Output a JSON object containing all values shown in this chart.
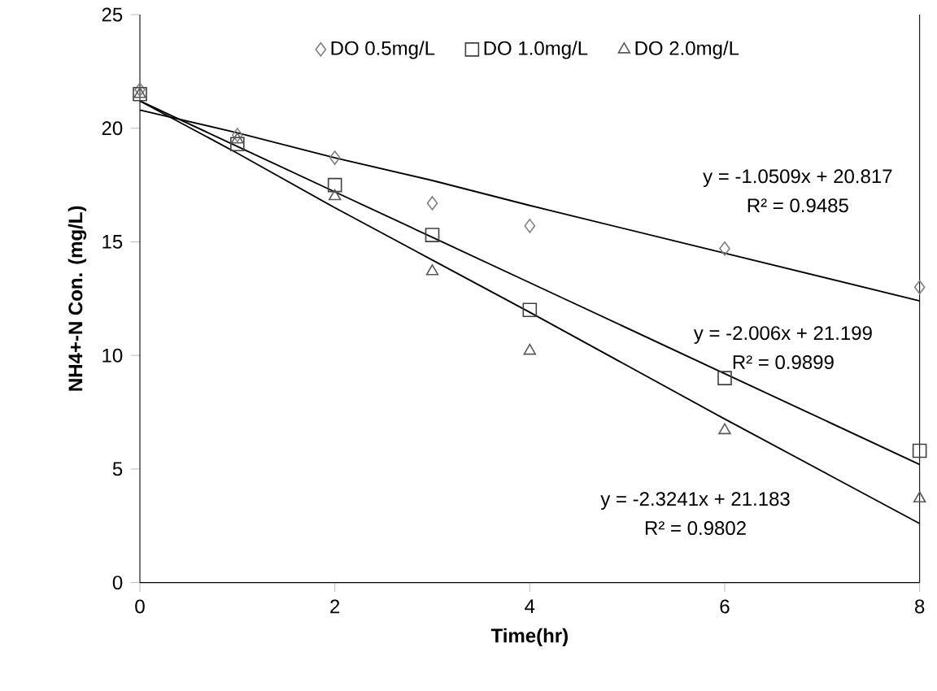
{
  "chart_data": {
    "type": "scatter",
    "xlabel": "Time(hr)",
    "ylabel": "NH4+-N Con. (mg/L)",
    "x": [
      0,
      1,
      2,
      3,
      4,
      6,
      8
    ],
    "xlim": [
      0,
      8
    ],
    "xticks": [
      0,
      2,
      4,
      6,
      8
    ],
    "ylim": [
      0,
      25
    ],
    "yticks": [
      0,
      5,
      10,
      15,
      20,
      25
    ],
    "grid": false,
    "legend": "top",
    "series": [
      {
        "name": "DO 0.5mg/L",
        "color": "#7f7f7f",
        "marker": "diamond",
        "values": [
          21.7,
          19.7,
          18.7,
          16.7,
          15.7,
          14.7,
          13.0
        ]
      },
      {
        "name": "DO 1.0mg/L",
        "color": "#404040",
        "marker": "square",
        "values": [
          21.5,
          19.3,
          17.5,
          15.3,
          12.0,
          9.0,
          5.8
        ]
      },
      {
        "name": "DO 2.0mg/L",
        "color": "#595959",
        "marker": "triangle",
        "values": [
          21.5,
          19.5,
          17.0,
          13.7,
          10.2,
          6.7,
          3.7
        ]
      },
      {
        "type": "line",
        "color": "#000000",
        "values": [
          20.8,
          19.8,
          18.7,
          17.7,
          16.6,
          14.5,
          12.4
        ]
      },
      {
        "type": "line",
        "color": "#000000",
        "values": [
          21.2,
          19.2,
          17.2,
          15.2,
          13.2,
          9.2,
          5.2
        ]
      },
      {
        "type": "line",
        "color": "#000000",
        "values": [
          21.2,
          18.9,
          16.5,
          14.2,
          11.9,
          7.2,
          2.6
        ]
      }
    ],
    "annotations": [
      "y = -1.0509x  + 20.817",
      "R² = 0.9485",
      "y = -2.006x  + 21.199",
      "R² = 0.9899",
      "y = -2.3241x  + 21.183",
      "R² = 0.9802"
    ]
  }
}
